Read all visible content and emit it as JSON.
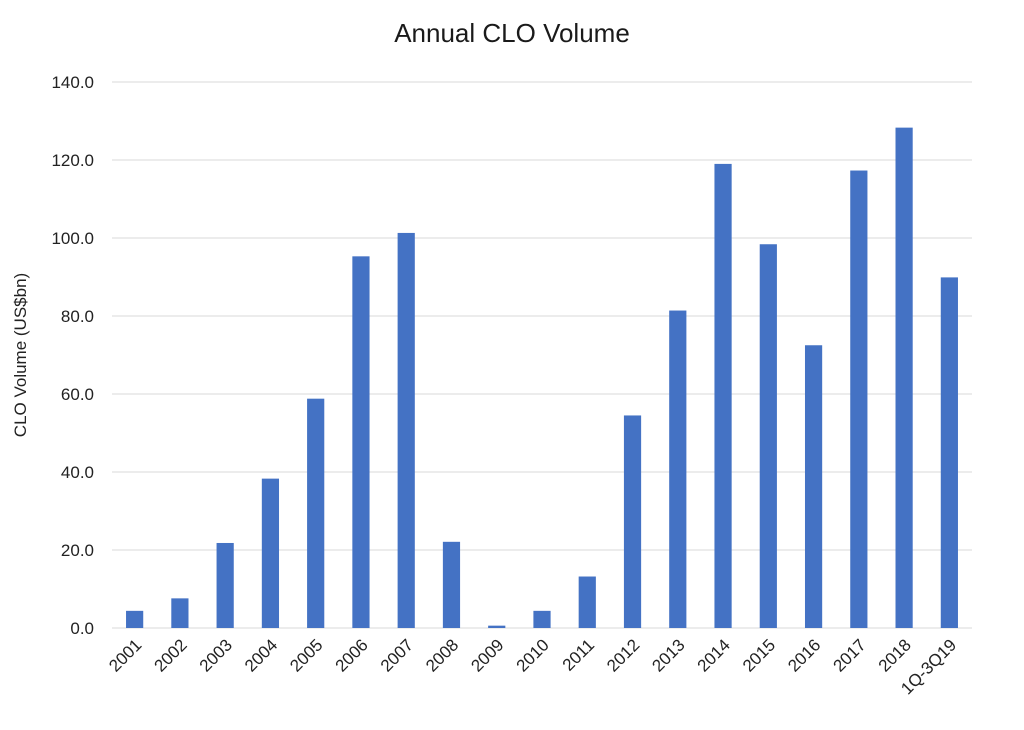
{
  "chart_data": {
    "type": "bar",
    "title": "Annual CLO Volume",
    "xlabel": "",
    "ylabel": "CLO Volume (US$bn)",
    "ylim": [
      0,
      140
    ],
    "yticks": [
      "0.0",
      "20.0",
      "40.0",
      "60.0",
      "80.0",
      "100.0",
      "120.0",
      "140.0"
    ],
    "grid": true,
    "legend": "none",
    "bar_color": "#4472C4",
    "categories": [
      "2001",
      "2002",
      "2003",
      "2004",
      "2005",
      "2006",
      "2007",
      "2008",
      "2009",
      "2010",
      "2011",
      "2012",
      "2013",
      "2014",
      "2015",
      "2016",
      "2017",
      "2018",
      "1Q-3Q19"
    ],
    "values": [
      4.4,
      7.6,
      21.8,
      38.3,
      58.8,
      95.3,
      101.3,
      22.1,
      0.6,
      4.4,
      13.2,
      54.5,
      81.4,
      119.0,
      98.4,
      72.5,
      117.3,
      128.3,
      89.9
    ]
  }
}
